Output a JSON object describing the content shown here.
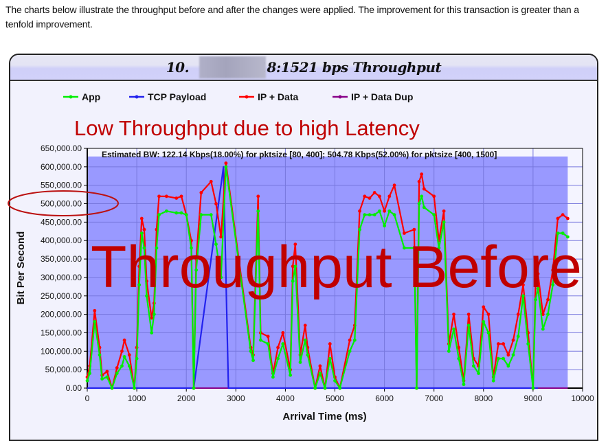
{
  "intro_text": "The charts below illustrate the throughput before and after the changes were applied. The improvement for this transaction is greater than a tenfold improvement.",
  "frame": {
    "title": "10.▒▒▒▒▒▒18:1521 bps Throughput",
    "title_left": "10.",
    "title_right": "18:1521 bps Throughput"
  },
  "colors": {
    "plot_bg": "#9999ff",
    "grid": "#7777dd",
    "app": "#00ee00",
    "tcp": "#2222ee",
    "ip": "#ff0000",
    "dup": "#880088",
    "annotation": "#c00000"
  },
  "annotations": {
    "headline": "Low Throughput due to high Latency",
    "watermark": "Throughput Before",
    "estimate": "Estimated BW: 122.14 Kbps(18.00%) for pktsize [80, 400]; 504.78 Kbps(52.00%) for pktsize [400, 1500]"
  },
  "chart_data": {
    "type": "line",
    "title": "10.x.x.18:1521 bps Throughput",
    "xlabel": "Arrival Time (ms)",
    "ylabel": "Bit Per Second",
    "xlim": [
      0,
      10000
    ],
    "ylim": [
      0,
      650000
    ],
    "grid": true,
    "legend_position": "top",
    "x_ticks": [
      "0",
      "1000",
      "2000",
      "3000",
      "4000",
      "5000",
      "6000",
      "7000",
      "8000",
      "9000",
      "10000"
    ],
    "y_ticks": [
      "0.00",
      "50,000.00",
      "100,000.00",
      "150,000.00",
      "200,000.00",
      "250,000.00",
      "300,000.00",
      "350,000.00",
      "400,000.00",
      "450,000.00",
      "500,000.00",
      "550,000.00",
      "600,000.00",
      "650,000.00"
    ],
    "highlighted_tick": "500,000.00",
    "legend": [
      "App",
      "TCP Payload",
      "IP + Data",
      "IP + Data Dup"
    ],
    "series": [
      {
        "name": "App",
        "x": [
          0,
          50,
          150,
          250,
          300,
          400,
          500,
          600,
          700,
          750,
          850,
          950,
          1000,
          1050,
          1100,
          1150,
          1200,
          1300,
          1350,
          1400,
          1450,
          1600,
          1800,
          1900,
          2000,
          2100,
          2150,
          2200,
          2300,
          2500,
          2600,
          2700,
          2800,
          3300,
          3350,
          3450,
          3500,
          3650,
          3750,
          3850,
          3950,
          4100,
          4150,
          4200,
          4300,
          4400,
          4450,
          4600,
          4700,
          4800,
          4900,
          5000,
          5100,
          5300,
          5400,
          5500,
          5600,
          5700,
          5800,
          5900,
          6000,
          6100,
          6200,
          6400,
          6600,
          6650,
          6700,
          6750,
          6800,
          7000,
          7100,
          7200,
          7300,
          7400,
          7500,
          7600,
          7700,
          7800,
          7900,
          8000,
          8100,
          8200,
          8300,
          8400,
          8500,
          8600,
          8700,
          8800,
          8900,
          9000,
          9050,
          9100,
          9200,
          9300,
          9400,
          9500,
          9600,
          9700
        ],
        "values": [
          20000,
          40000,
          180000,
          90000,
          25000,
          30000,
          0,
          40000,
          60000,
          85000,
          60000,
          0,
          80000,
          280000,
          420000,
          380000,
          250000,
          150000,
          200000,
          380000,
          470000,
          480000,
          475000,
          475000,
          470000,
          380000,
          0,
          320000,
          470000,
          470000,
          390000,
          300000,
          600000,
          100000,
          75000,
          480000,
          130000,
          120000,
          30000,
          80000,
          120000,
          35000,
          290000,
          330000,
          70000,
          130000,
          90000,
          0,
          40000,
          0,
          80000,
          20000,
          0,
          100000,
          130000,
          430000,
          470000,
          470000,
          470000,
          480000,
          440000,
          480000,
          470000,
          380000,
          380000,
          0,
          500000,
          520000,
          490000,
          470000,
          380000,
          450000,
          100000,
          160000,
          80000,
          10000,
          170000,
          60000,
          40000,
          180000,
          150000,
          20000,
          80000,
          80000,
          60000,
          90000,
          140000,
          250000,
          120000,
          0,
          240000,
          270000,
          160000,
          200000,
          280000,
          420000,
          420000,
          410000
        ]
      },
      {
        "name": "IP + Data",
        "x": [
          0,
          50,
          150,
          250,
          300,
          400,
          500,
          600,
          700,
          750,
          850,
          950,
          1000,
          1050,
          1100,
          1150,
          1200,
          1300,
          1350,
          1400,
          1450,
          1600,
          1800,
          1900,
          2000,
          2100,
          2150,
          2200,
          2300,
          2500,
          2600,
          2700,
          2800,
          3300,
          3350,
          3450,
          3500,
          3650,
          3750,
          3850,
          3950,
          4100,
          4150,
          4200,
          4300,
          4400,
          4450,
          4600,
          4700,
          4800,
          4900,
          5000,
          5100,
          5300,
          5400,
          5500,
          5600,
          5700,
          5800,
          5900,
          6000,
          6100,
          6200,
          6400,
          6600,
          6650,
          6700,
          6750,
          6800,
          7000,
          7100,
          7200,
          7300,
          7400,
          7500,
          7600,
          7700,
          7800,
          7900,
          8000,
          8100,
          8200,
          8300,
          8400,
          8500,
          8600,
          8700,
          8800,
          8900,
          9000,
          9050,
          9100,
          9200,
          9300,
          9400,
          9500,
          9600,
          9700
        ],
        "values": [
          30000,
          60000,
          210000,
          110000,
          35000,
          45000,
          0,
          55000,
          100000,
          130000,
          90000,
          0,
          110000,
          330000,
          460000,
          430000,
          290000,
          190000,
          230000,
          430000,
          520000,
          520000,
          515000,
          520000,
          470000,
          400000,
          0,
          350000,
          530000,
          560000,
          500000,
          410000,
          610000,
          110000,
          90000,
          520000,
          150000,
          140000,
          40000,
          110000,
          150000,
          50000,
          330000,
          390000,
          90000,
          170000,
          110000,
          0,
          60000,
          0,
          120000,
          30000,
          0,
          130000,
          170000,
          480000,
          520000,
          515000,
          530000,
          520000,
          480000,
          520000,
          550000,
          420000,
          430000,
          0,
          560000,
          580000,
          540000,
          520000,
          400000,
          480000,
          120000,
          200000,
          110000,
          20000,
          200000,
          80000,
          60000,
          220000,
          200000,
          30000,
          120000,
          120000,
          90000,
          130000,
          200000,
          280000,
          150000,
          0,
          280000,
          310000,
          200000,
          240000,
          320000,
          460000,
          470000,
          460000
        ]
      },
      {
        "name": "TCP Payload",
        "x": [
          0,
          1000,
          2100,
          2150,
          2750,
          2850,
          2900,
          3300,
          4350,
          4400,
          6650,
          6700,
          9050,
          9100
        ],
        "values": [
          0,
          0,
          0,
          0,
          600000,
          0,
          0,
          0,
          0,
          0,
          0,
          0,
          0,
          0
        ]
      },
      {
        "name": "IP + Data Dup",
        "x": [
          0,
          9700
        ],
        "values": [
          0,
          0
        ]
      }
    ]
  }
}
